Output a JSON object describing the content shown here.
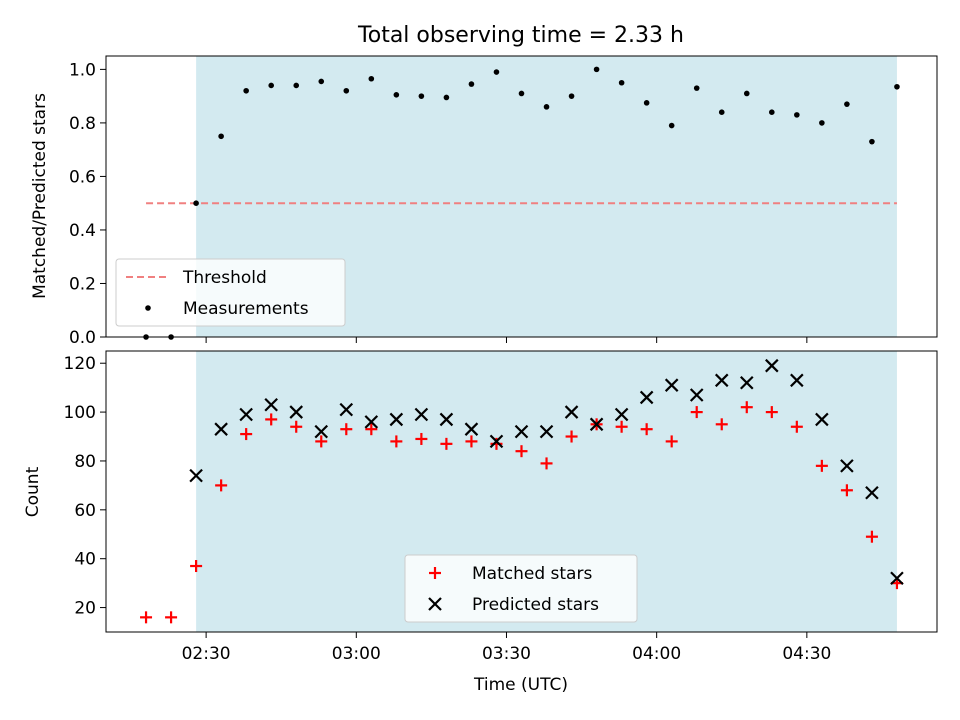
{
  "figure": {
    "title": "Total observing time = 2.33 h",
    "xlabel": "Time (UTC)",
    "shade_color": "#d3eaf0"
  },
  "chart_data": [
    {
      "type": "scatter",
      "ylabel": "Matched/Predicted stars",
      "xlim": [
        "02:10",
        "04:56"
      ],
      "ylim": [
        0,
        1.05
      ],
      "grid": false,
      "legend_placement": "lower-left",
      "x_ticks": [],
      "y_ticks": [
        {
          "value": 0.0,
          "label": "0.0"
        },
        {
          "value": 0.2,
          "label": "0.2"
        },
        {
          "value": 0.4,
          "label": "0.4"
        },
        {
          "value": 0.6,
          "label": "0.6"
        },
        {
          "value": 0.8,
          "label": "0.8"
        },
        {
          "value": 1.0,
          "label": "1.0"
        }
      ],
      "shaded_region": {
        "from": "02:28",
        "to": "04:48"
      },
      "threshold": {
        "name": "Threshold",
        "value": 0.5,
        "from": "02:18",
        "to": "04:48",
        "color": "#f08080",
        "style": "dashed"
      },
      "series": [
        {
          "name": "Measurements",
          "marker": "dot",
          "color": "#000000",
          "x": [
            "02:18",
            "02:23",
            "02:28",
            "02:33",
            "02:38",
            "02:43",
            "02:48",
            "02:53",
            "02:58",
            "03:03",
            "03:08",
            "03:13",
            "03:18",
            "03:23",
            "03:28",
            "03:33",
            "03:38",
            "03:43",
            "03:48",
            "03:53",
            "03:58",
            "04:03",
            "04:08",
            "04:13",
            "04:18",
            "04:23",
            "04:28",
            "04:33",
            "04:38",
            "04:43",
            "04:48"
          ],
          "y": [
            0.0,
            0.0,
            0.5,
            0.75,
            0.92,
            0.94,
            0.94,
            0.955,
            0.92,
            0.965,
            0.905,
            0.9,
            0.895,
            0.945,
            0.99,
            0.91,
            0.86,
            0.9,
            1.0,
            0.95,
            0.875,
            0.79,
            0.93,
            0.84,
            0.91,
            0.84,
            0.83,
            0.8,
            0.87,
            0.73,
            0.935
          ]
        }
      ]
    },
    {
      "type": "scatter",
      "ylabel": "Count",
      "xlim": [
        "02:10",
        "04:56"
      ],
      "ylim": [
        10,
        125
      ],
      "grid": false,
      "legend_placement": "lower-center",
      "x_ticks": [
        {
          "value": "02:30",
          "label": "02:30"
        },
        {
          "value": "03:00",
          "label": "03:00"
        },
        {
          "value": "03:30",
          "label": "03:30"
        },
        {
          "value": "04:00",
          "label": "04:00"
        },
        {
          "value": "04:30",
          "label": "04:30"
        }
      ],
      "y_ticks": [
        {
          "value": 20,
          "label": "20"
        },
        {
          "value": 40,
          "label": "40"
        },
        {
          "value": 60,
          "label": "60"
        },
        {
          "value": 80,
          "label": "80"
        },
        {
          "value": 100,
          "label": "100"
        },
        {
          "value": 120,
          "label": "120"
        }
      ],
      "shaded_region": {
        "from": "02:28",
        "to": "04:48"
      },
      "series": [
        {
          "name": "Matched stars",
          "marker": "plus",
          "color": "#ff0000",
          "x": [
            "02:18",
            "02:23",
            "02:28",
            "02:33",
            "02:38",
            "02:43",
            "02:48",
            "02:53",
            "02:58",
            "03:03",
            "03:08",
            "03:13",
            "03:18",
            "03:23",
            "03:28",
            "03:33",
            "03:38",
            "03:43",
            "03:48",
            "03:53",
            "03:58",
            "04:03",
            "04:08",
            "04:13",
            "04:18",
            "04:23",
            "04:28",
            "04:33",
            "04:38",
            "04:43",
            "04:48"
          ],
          "y": [
            16,
            16,
            37,
            70,
            91,
            97,
            94,
            88,
            93,
            93,
            88,
            89,
            87,
            88,
            87,
            84,
            79,
            90,
            95,
            94,
            93,
            88,
            100,
            95,
            102,
            100,
            94,
            78,
            68,
            49,
            30
          ]
        },
        {
          "name": "Predicted stars",
          "marker": "x",
          "color": "#000000",
          "x": [
            "02:28",
            "02:33",
            "02:38",
            "02:43",
            "02:48",
            "02:53",
            "02:58",
            "03:03",
            "03:08",
            "03:13",
            "03:18",
            "03:23",
            "03:28",
            "03:33",
            "03:38",
            "03:43",
            "03:48",
            "03:53",
            "03:58",
            "04:03",
            "04:08",
            "04:13",
            "04:18",
            "04:23",
            "04:28",
            "04:33",
            "04:38",
            "04:43",
            "04:48"
          ],
          "y": [
            74,
            93,
            99,
            103,
            100,
            92,
            101,
            96,
            97,
            99,
            97,
            93,
            88,
            92,
            92,
            100,
            95,
            99,
            106,
            111,
            107,
            113,
            112,
            119,
            113,
            97,
            78,
            67,
            32
          ]
        }
      ]
    }
  ]
}
